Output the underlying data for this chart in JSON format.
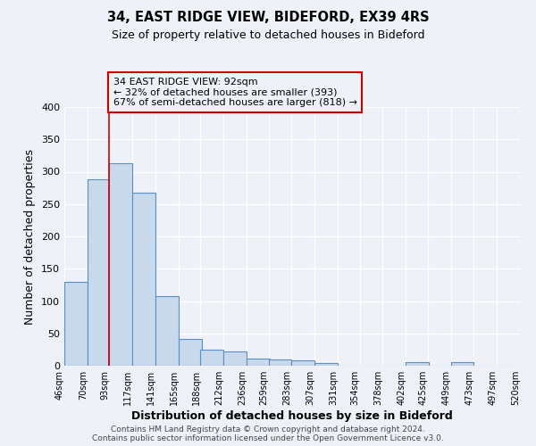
{
  "title": "34, EAST RIDGE VIEW, BIDEFORD, EX39 4RS",
  "subtitle": "Size of property relative to detached houses in Bideford",
  "xlabel": "Distribution of detached houses by size in Bideford",
  "ylabel": "Number of detached properties",
  "bar_left_edges": [
    46,
    70,
    93,
    117,
    141,
    165,
    188,
    212,
    236,
    259,
    283,
    307,
    331,
    354,
    378,
    402,
    425,
    449,
    473,
    497
  ],
  "bar_heights": [
    130,
    288,
    313,
    268,
    108,
    41,
    25,
    22,
    11,
    10,
    8,
    4,
    0,
    0,
    0,
    5,
    0,
    5,
    0,
    0
  ],
  "bin_width": 24,
  "tick_labels": [
    "46sqm",
    "70sqm",
    "93sqm",
    "117sqm",
    "141sqm",
    "165sqm",
    "188sqm",
    "212sqm",
    "236sqm",
    "259sqm",
    "283sqm",
    "307sqm",
    "331sqm",
    "354sqm",
    "378sqm",
    "402sqm",
    "425sqm",
    "449sqm",
    "473sqm",
    "497sqm",
    "520sqm"
  ],
  "bar_color": "#c9d9ec",
  "bar_edge_color": "#5a8fc0",
  "bar_edge_width": 0.8,
  "vline_x": 93,
  "vline_color": "#cc0000",
  "ylim": [
    0,
    400
  ],
  "yticks": [
    0,
    50,
    100,
    150,
    200,
    250,
    300,
    350,
    400
  ],
  "annotation_text": "34 EAST RIDGE VIEW: 92sqm\n← 32% of detached houses are smaller (393)\n67% of semi-detached houses are larger (818) →",
  "bg_color": "#eef2f8",
  "footer_line1": "Contains HM Land Registry data © Crown copyright and database right 2024.",
  "footer_line2": "Contains public sector information licensed under the Open Government Licence v3.0."
}
